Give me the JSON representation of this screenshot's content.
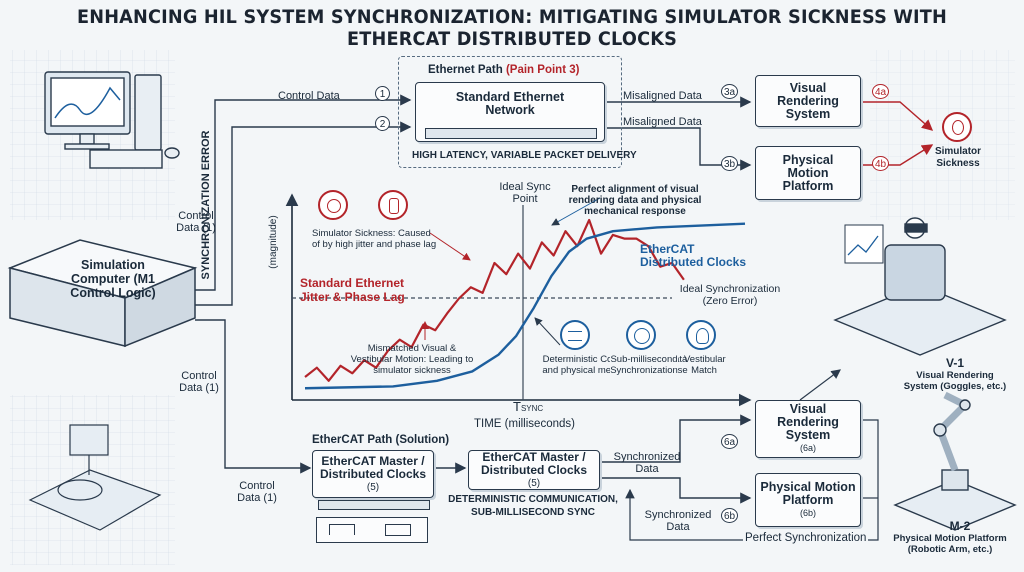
{
  "title": "ENHANCING HIL SYSTEM SYNCHRONIZATION: MITIGATING SIMULATOR SICKNESS WITH ETHERCAT DISTRIBUTED CLOCKS",
  "sim_computer": {
    "label": "Simulation Computer (M1 Control Logic)"
  },
  "control_labels": {
    "top": "Control Data",
    "mid": "Control Data (1)",
    "lower": "Control Data (1)",
    "bottom": "Control Data (1)"
  },
  "ethernet": {
    "path_title": "Ethernet Path",
    "pain_point": "(Pain Point 3)",
    "box": "Standard Ethernet Network",
    "caption": "HIGH LATENCY, VARIABLE PACKET DELIVERY",
    "misaligned_1": "Misaligned Data",
    "misaligned_2": "Misaligned Data"
  },
  "numbers": {
    "n1": "1",
    "n2": "2",
    "n3a": "3a",
    "n3b": "3b",
    "n4a": "4a",
    "n4b": "4b",
    "n6a": "6a",
    "n6b": "6b"
  },
  "top_outputs": {
    "visual": "Visual Rendering System",
    "motion": "Physical Motion Platform",
    "sickness": "Simulator Sickness"
  },
  "chart": {
    "ylabel": "SYNCHRONIZATION ERROR",
    "ylabel_unit": "(magnitude)",
    "xlabel": "TIME (milliseconds)",
    "tsync": "T",
    "tsync_sub": "SYNC",
    "ideal_point": "Ideal Sync Point",
    "perfect_alignment": "Perfect alignment of visual rendering data and physical mechanical response",
    "ethercat_series": "EtherCAT Distributed Clocks",
    "ethernet_series": "Standard Ethernet Jitter & Phase Lag",
    "ideal_sync": "Ideal Synchronization (Zero Error)",
    "sickness_note": "Simulator Sickness: Caused of by high jitter and phase lag",
    "mismatch_note": "Mismatched Visual & Vestibular Motion: Leading to simulator sickness",
    "deterministic_note": "Deterministic Communication data and physical mechanical response",
    "submillisecond": "Sub-millisecond Synchronization",
    "vestibular": "Vestibular Match",
    "colors": {
      "ethernet": "#b3242a",
      "ethercat": "#1d5f9e",
      "ideal": "#3b4a5a"
    }
  },
  "chart_data": {
    "type": "line",
    "xlabel": "TIME (milliseconds)",
    "ylabel": "SYNCHRONIZATION ERROR (magnitude)",
    "series": [
      {
        "name": "Standard Ethernet Jitter & Phase Lag",
        "values": [
          [
            0,
            8
          ],
          [
            3,
            13
          ],
          [
            6,
            6
          ],
          [
            9,
            14
          ],
          [
            12,
            10
          ],
          [
            15,
            17
          ],
          [
            18,
            13
          ],
          [
            21,
            22
          ],
          [
            24,
            28
          ],
          [
            27,
            24
          ],
          [
            30,
            36
          ],
          [
            33,
            33
          ],
          [
            36,
            42
          ],
          [
            39,
            50
          ],
          [
            42,
            56
          ],
          [
            45,
            53
          ],
          [
            48,
            69
          ],
          [
            51,
            63
          ],
          [
            54,
            74
          ],
          [
            57,
            66
          ],
          [
            60,
            80
          ],
          [
            63,
            73
          ],
          [
            66,
            86
          ],
          [
            69,
            78
          ],
          [
            72,
            92
          ],
          [
            75,
            74
          ],
          [
            78,
            84
          ],
          [
            81,
            82
          ],
          [
            84,
            82
          ],
          [
            87,
            78
          ],
          [
            90,
            67
          ],
          [
            93,
            69
          ],
          [
            96,
            60
          ]
        ]
      },
      {
        "name": "EtherCAT Distributed Clocks",
        "values": [
          [
            0,
            2
          ],
          [
            20,
            3
          ],
          [
            30,
            6
          ],
          [
            38,
            11
          ],
          [
            44,
            20
          ],
          [
            48,
            30
          ],
          [
            52,
            45
          ],
          [
            56,
            62
          ],
          [
            60,
            75
          ],
          [
            64,
            82
          ],
          [
            70,
            86
          ],
          [
            80,
            88
          ],
          [
            100,
            90
          ]
        ]
      },
      {
        "name": "Ideal Synchronization (Zero Error)",
        "values": [
          [
            0,
            42
          ],
          [
            100,
            42
          ]
        ]
      }
    ]
  },
  "ethercat": {
    "path_title": "EtherCAT Path (Solution)",
    "master1": "EtherCAT Master / Distributed Clocks",
    "master1_num": "(5)",
    "master2": "EtherCAT Master / Distributed Clocks",
    "master2_num": "(5)",
    "caption1": "DETERMINISTIC COMMUNICATION,",
    "caption2": "SUB-MILLISECOND SYNC",
    "synchronized_1": "Synchronized Data",
    "synchronized_2": "Synchronized Data",
    "perfect": "Perfect Synchronization"
  },
  "bottom_outputs": {
    "visual": "Visual Rendering System",
    "visual_num": "(6a)",
    "motion": "Physical Motion Platform",
    "motion_num": "(6b)"
  },
  "right_panel": {
    "v1_title": "V-1",
    "v1_desc": "Visual Rendering System (Goggles, etc.)",
    "m2_title": "M-2",
    "m2_desc": "Physical Motion Platform (Robotic Arm, etc.)"
  }
}
